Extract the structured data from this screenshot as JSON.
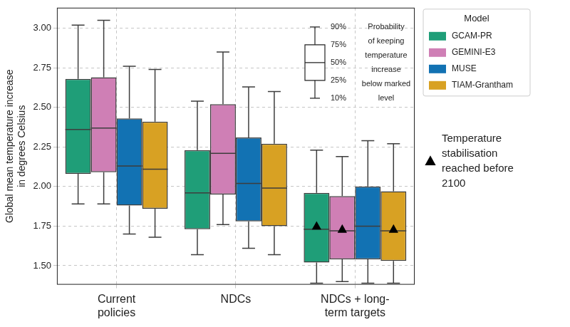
{
  "chart_data": {
    "type": "box",
    "categories": [
      [
        "Current",
        "policies"
      ],
      [
        "NDCs"
      ],
      [
        "NDCs + long-",
        "term targets"
      ]
    ],
    "y_label": [
      "Global mean temperature increase",
      "in degrees Celsius"
    ],
    "ylim": [
      1.38,
      3.13
    ],
    "yticks": [
      {
        "value": 1.5,
        "label": "1.50"
      },
      {
        "value": 1.75,
        "label": "1.75"
      },
      {
        "value": 2.0,
        "label": "2.00"
      },
      {
        "value": 2.25,
        "label": "2.25"
      },
      {
        "value": 2.5,
        "label": "2.50"
      },
      {
        "value": 2.75,
        "label": "2.75"
      },
      {
        "value": 3.0,
        "label": "3.00"
      }
    ],
    "grid": true,
    "legend": "right",
    "legend_title": "Model",
    "series": [
      {
        "name": "GCAM-PR",
        "color": "#1f9e78",
        "values": [
          [
            1.89,
            2.08,
            2.36,
            2.68,
            3.02
          ],
          [
            1.57,
            1.73,
            1.96,
            2.23,
            2.54
          ],
          [
            1.39,
            1.52,
            1.73,
            1.96,
            2.23
          ]
        ],
        "stabilisation": [
          null,
          null,
          1.75
        ]
      },
      {
        "name": "GEMINI-E3",
        "color": "#cf7fb5",
        "values": [
          [
            1.89,
            2.09,
            2.37,
            2.69,
            3.05
          ],
          [
            1.76,
            1.95,
            2.21,
            2.52,
            2.85
          ],
          [
            1.4,
            1.54,
            1.72,
            1.94,
            2.19
          ]
        ],
        "stabilisation": [
          null,
          null,
          1.73
        ]
      },
      {
        "name": "MUSE",
        "color": "#1272b3",
        "values": [
          [
            1.7,
            1.88,
            2.13,
            2.43,
            2.76
          ],
          [
            1.61,
            1.78,
            2.02,
            2.31,
            2.63
          ],
          [
            1.39,
            1.54,
            1.75,
            2.0,
            2.29
          ]
        ],
        "stabilisation": [
          null,
          null,
          null
        ]
      },
      {
        "name": "TIAM-Grantham",
        "color": "#d8a123",
        "values": [
          [
            1.68,
            1.86,
            2.11,
            2.41,
            2.74
          ],
          [
            1.57,
            1.75,
            1.99,
            2.27,
            2.6
          ],
          [
            1.39,
            1.53,
            1.72,
            1.97,
            2.27
          ]
        ],
        "stabilisation": [
          null,
          null,
          1.73
        ]
      }
    ],
    "percentile_key": {
      "levels": [
        {
          "value": 90,
          "label": "90%"
        },
        {
          "value": 75,
          "label": "75%"
        },
        {
          "value": 50,
          "label": "50%"
        },
        {
          "value": 25,
          "label": "25%"
        },
        {
          "value": 10,
          "label": "10%"
        }
      ],
      "text": [
        "Probability",
        "of keeping",
        "temperature",
        "increase",
        "below marked",
        "level"
      ]
    },
    "stabilisation_marker": {
      "marker": "triangle",
      "text": [
        "Temperature",
        "stabilisation",
        "reached before",
        "2100"
      ]
    }
  }
}
